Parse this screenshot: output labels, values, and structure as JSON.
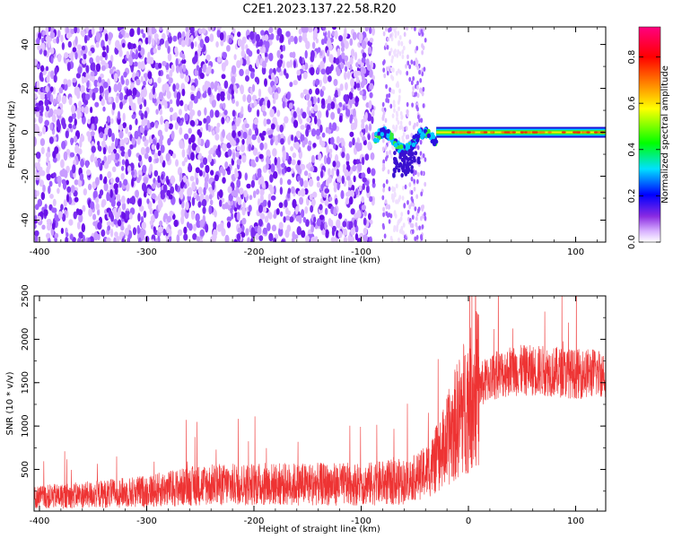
{
  "title": "C2E1.2023.137.22.58.R20",
  "chart_data": [
    {
      "type": "heatmap",
      "xlabel": "Height of straight line (km)",
      "ylabel": "Frequency (Hz)",
      "xlim": [
        -405,
        128
      ],
      "ylim": [
        -50,
        48
      ],
      "xticks": [
        -400,
        -300,
        -200,
        -100,
        0,
        100
      ],
      "yticks": [
        -40,
        -20,
        0,
        20,
        40
      ],
      "colorbar": {
        "label": "Normalized spectral amplitude",
        "range": [
          0,
          0.93
        ],
        "ticks": [
          0.0,
          0.2,
          0.4,
          0.6,
          0.8
        ]
      },
      "features": {
        "noise_region_x": [
          -405,
          -40
        ],
        "transition_x": [
          -90,
          -30
        ],
        "carrier_x": [
          -30,
          128
        ],
        "carrier_freq": 0
      }
    },
    {
      "type": "line",
      "xlabel": "Height of straight line (km)",
      "ylabel": "SNR (10 * v/v)",
      "xlim": [
        -405,
        128
      ],
      "ylim": [
        20,
        2500
      ],
      "xticks": [
        -400,
        -300,
        -200,
        -100,
        0,
        100
      ],
      "yticks": [
        500,
        1000,
        1500,
        2000,
        2500
      ],
      "series_color": "#ee3333",
      "trend": {
        "x": [
          -405,
          -350,
          -300,
          -250,
          -200,
          -150,
          -100,
          -60,
          -45,
          -35,
          -25,
          -15,
          -5,
          5,
          20,
          40,
          70,
          100,
          128
        ],
        "y": [
          180,
          210,
          250,
          320,
          330,
          330,
          330,
          360,
          430,
          520,
          700,
          950,
          1200,
          1400,
          1560,
          1640,
          1640,
          1600,
          1620
        ]
      }
    }
  ]
}
